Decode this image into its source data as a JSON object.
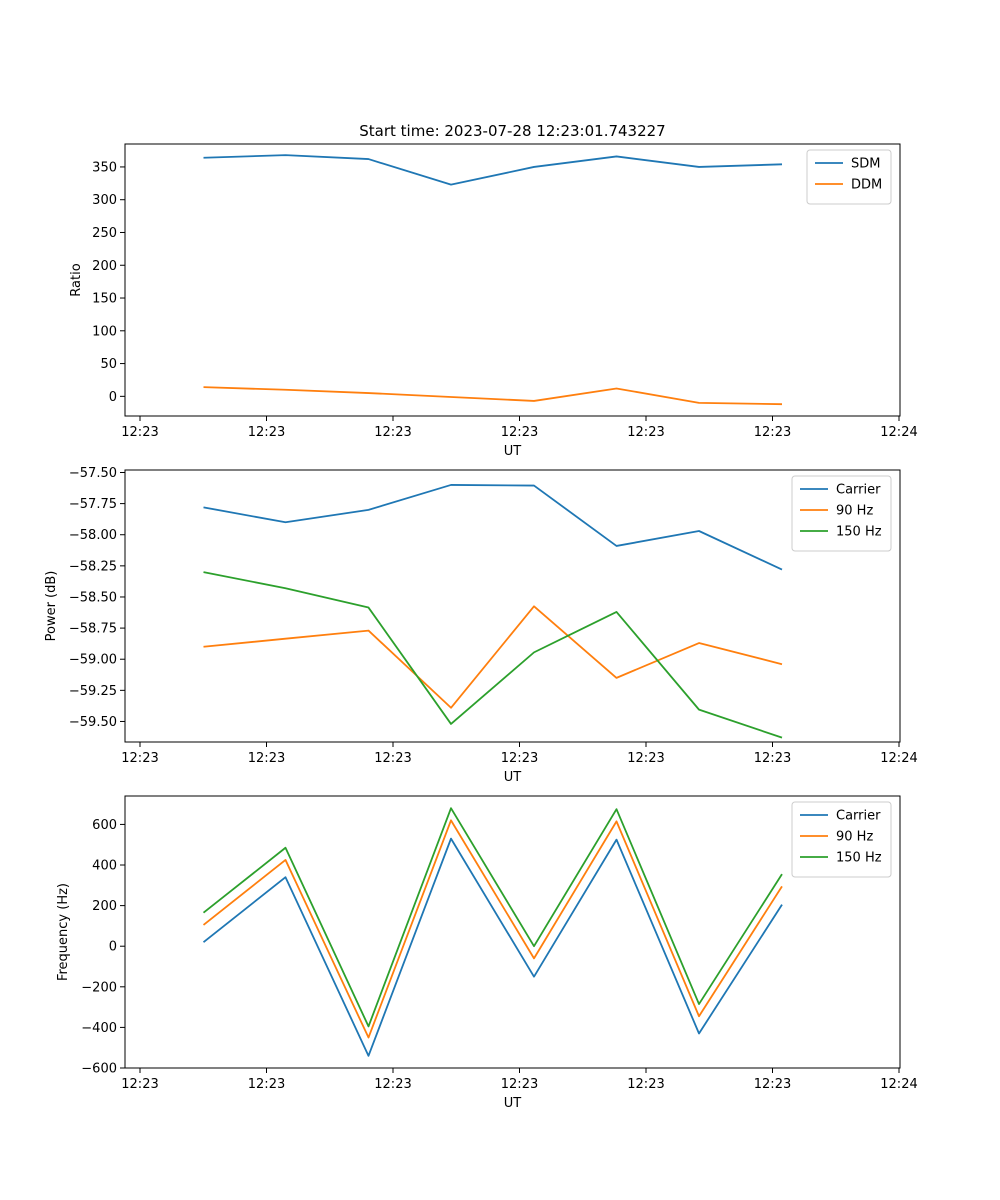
{
  "chart_data": [
    {
      "type": "line",
      "title": "Start time: 2023-07-28 12:23:01.743227",
      "xlabel": "UT",
      "ylabel": "Ratio",
      "x_tick_labels": [
        "12:23",
        "12:23",
        "12:23",
        "12:23",
        "12:23",
        "12:23",
        "12:24"
      ],
      "x": [
        1,
        2,
        3,
        4,
        5,
        6,
        7,
        8
      ],
      "xlim": [
        0.2,
        9.45
      ],
      "y_ticks": [
        0,
        50,
        100,
        150,
        200,
        250,
        300,
        350
      ],
      "ylim": [
        -30,
        385
      ],
      "grid": false,
      "legend": "top-right",
      "series": [
        {
          "name": "SDM",
          "color": "#1f77b4",
          "values": [
            364,
            368,
            362,
            323,
            350,
            366,
            350,
            354
          ]
        },
        {
          "name": "DDM",
          "color": "#ff7f0e",
          "values": [
            14,
            10,
            5,
            -1,
            -7,
            12,
            -10,
            -12
          ]
        }
      ]
    },
    {
      "type": "line",
      "xlabel": "UT",
      "ylabel": "Power (dB)",
      "x_tick_labels": [
        "12:23",
        "12:23",
        "12:23",
        "12:23",
        "12:23",
        "12:23",
        "12:24"
      ],
      "x": [
        1,
        2,
        3,
        4,
        5,
        6,
        7,
        8
      ],
      "xlim": [
        0.2,
        9.45
      ],
      "y_ticks": [
        -57.5,
        -57.75,
        -58.0,
        -58.25,
        -58.5,
        -58.75,
        -59.0,
        -59.25,
        -59.5
      ],
      "y_tick_labels": [
        "−57.50",
        "−57.75",
        "−58.00",
        "−58.25",
        "−58.50",
        "−58.75",
        "−59.00",
        "−59.25",
        "−59.50"
      ],
      "ylim": [
        -59.665,
        -57.48
      ],
      "grid": false,
      "legend": "top-right",
      "series": [
        {
          "name": "Carrier",
          "color": "#1f77b4",
          "values": [
            -57.78,
            -57.9,
            -57.8,
            -57.6,
            -57.605,
            -58.09,
            -57.97,
            -58.28
          ]
        },
        {
          "name": "90 Hz",
          "color": "#ff7f0e",
          "values": [
            -58.9,
            -58.835,
            -58.77,
            -59.39,
            -58.575,
            -59.15,
            -58.87,
            -59.04
          ]
        },
        {
          "name": "150 Hz",
          "color": "#2ca02c",
          "values": [
            -58.3,
            -58.43,
            -58.585,
            -59.52,
            -58.945,
            -58.62,
            -59.405,
            -59.63
          ]
        }
      ]
    },
    {
      "type": "line",
      "xlabel": "UT",
      "ylabel": "Frequency (Hz)",
      "x_tick_labels": [
        "12:23",
        "12:23",
        "12:23",
        "12:23",
        "12:23",
        "12:23",
        "12:24"
      ],
      "x": [
        1,
        2,
        3,
        4,
        5,
        6,
        7,
        8
      ],
      "xlim": [
        0.2,
        9.45
      ],
      "y_ticks": [
        -600,
        -400,
        -200,
        0,
        200,
        400,
        600
      ],
      "y_tick_labels": [
        "−600",
        "−400",
        "−200",
        "0",
        "200",
        "400",
        "600"
      ],
      "ylim": [
        -600,
        740
      ],
      "grid": false,
      "legend": "top-right",
      "series": [
        {
          "name": "Carrier",
          "color": "#1f77b4",
          "values": [
            20,
            340,
            -540,
            530,
            -150,
            525,
            -430,
            205
          ]
        },
        {
          "name": "90 Hz",
          "color": "#ff7f0e",
          "values": [
            105,
            425,
            -450,
            620,
            -60,
            615,
            -345,
            295
          ]
        },
        {
          "name": "150 Hz",
          "color": "#2ca02c",
          "values": [
            165,
            485,
            -395,
            680,
            0,
            675,
            -285,
            355
          ]
        }
      ]
    }
  ]
}
